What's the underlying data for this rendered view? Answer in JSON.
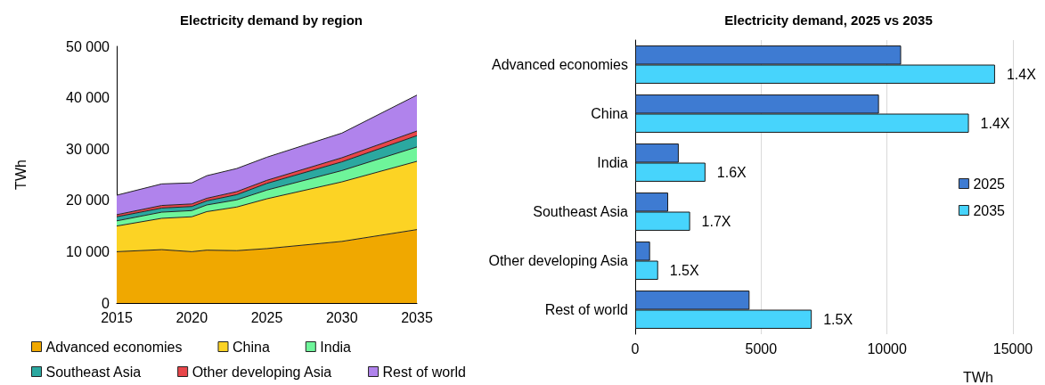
{
  "chart_data": [
    {
      "type": "area",
      "title": "Electricity demand by region",
      "ylabel": "TWh",
      "stacked": true,
      "x": [
        2015,
        2018,
        2020,
        2021,
        2023,
        2025,
        2030,
        2035
      ],
      "xlim": [
        2015,
        2035
      ],
      "xticks": [
        2015,
        2020,
        2025,
        2030,
        2035
      ],
      "ylim": [
        0,
        50000
      ],
      "yticks": [
        0,
        {
          "value": 10000,
          "label": "10 000"
        },
        {
          "value": 20000,
          "label": "20 000"
        },
        {
          "value": 30000,
          "label": "30 000"
        },
        {
          "value": 40000,
          "label": "40 000"
        },
        {
          "value": 50000,
          "label": "50 000"
        }
      ],
      "grid": false,
      "legend": "bottom",
      "series": [
        {
          "name": "Advanced economies",
          "color": "#f0a800",
          "values": [
            10000,
            10400,
            10000,
            10300,
            10200,
            10600,
            12000,
            14300
          ]
        },
        {
          "name": "China",
          "color": "#fcd324",
          "values": [
            5000,
            6100,
            6800,
            7500,
            8500,
            9700,
            11600,
            13300
          ]
        },
        {
          "name": "India",
          "color": "#6ef59a",
          "values": [
            1000,
            1200,
            1200,
            1300,
            1400,
            1700,
            2200,
            2800
          ]
        },
        {
          "name": "Southeast Asia",
          "color": "#2ba8a0",
          "values": [
            800,
            800,
            800,
            800,
            1000,
            1300,
            1700,
            2200
          ]
        },
        {
          "name": "Other developing Asia",
          "color": "#e8464a",
          "values": [
            400,
            500,
            500,
            500,
            600,
            600,
            800,
            900
          ]
        },
        {
          "name": "Rest of world",
          "color": "#b083ec",
          "values": [
            3800,
            4200,
            4100,
            4400,
            4500,
            4500,
            4800,
            7000
          ]
        }
      ]
    },
    {
      "type": "bar",
      "title": "Electricity demand, 2025 vs 2035",
      "xlabel": "TWh",
      "orientation": "horizontal",
      "categories": [
        "Advanced economies",
        "China",
        "India",
        "Southeast Asia",
        "Other developing Asia",
        "Rest of world"
      ],
      "xlim": [
        0,
        15000
      ],
      "xticks": [
        0,
        5000,
        10000,
        15000
      ],
      "grid": "x",
      "legend": "right",
      "series": [
        {
          "name": "2025",
          "color": "#3e7bd2",
          "values": [
            10560,
            9680,
            1730,
            1310,
            590,
            4540
          ]
        },
        {
          "name": "2035",
          "color": "#47d4fc",
          "values": [
            14290,
            13250,
            2790,
            2180,
            910,
            7010
          ]
        }
      ],
      "annotations": [
        {
          "text": "1.4X",
          "x": 14290,
          "y": "Advanced economies"
        },
        {
          "text": "1.4X",
          "x": 13250,
          "y": "China"
        },
        {
          "text": "1.6X",
          "x": 2790,
          "y": "India"
        },
        {
          "text": "1.7X",
          "x": 2180,
          "y": "Southeast Asia"
        },
        {
          "text": "1.5X",
          "x": 910,
          "y": "Other developing Asia"
        },
        {
          "text": "1.5X",
          "x": 7010,
          "y": "Rest of world"
        }
      ]
    }
  ]
}
